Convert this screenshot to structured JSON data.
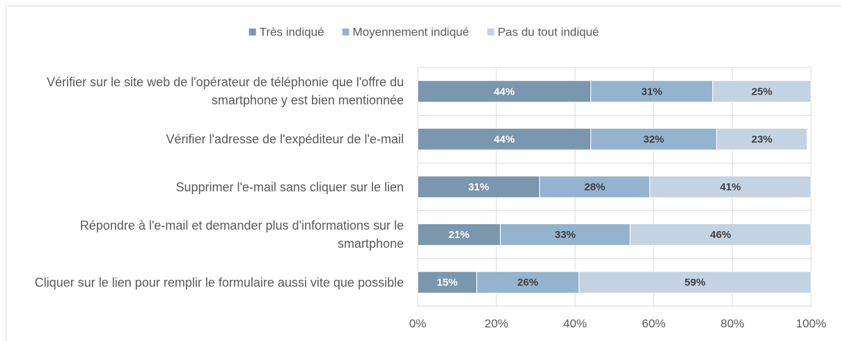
{
  "chart_data": {
    "type": "stacked_bar_horizontal",
    "categories": [
      "Vérifier sur le site web de l'opérateur de téléphonie que l'offre du smartphone y est bien mentionnée",
      "Vérifier l'adresse de l'expéditeur de l'e-mail",
      "Supprimer l'e-mail sans cliquer sur le lien",
      "Répondre à l'e-mail et demander plus d'informations sur le smartphone",
      "Cliquer sur le lien pour remplir le formulaire aussi vite que possible"
    ],
    "series": [
      {
        "name": "Très indiqué",
        "color": "#7a97ae",
        "values": [
          44,
          44,
          31,
          21,
          15
        ],
        "value_labels": [
          "44%",
          "44%",
          "31%",
          "21%",
          "15%"
        ]
      },
      {
        "name": "Moyennement indiqué",
        "color": "#95b3cf",
        "values": [
          31,
          32,
          28,
          33,
          26
        ],
        "value_labels": [
          "31%",
          "32%",
          "28%",
          "33%",
          "26%"
        ]
      },
      {
        "name": "Pas du tout indiqué",
        "color": "#c3d3e2",
        "values": [
          25,
          23,
          41,
          46,
          59
        ],
        "value_labels": [
          "25%",
          "23%",
          "41%",
          "46%",
          "59%"
        ]
      }
    ],
    "xlim": [
      0,
      100
    ],
    "xticks": [
      {
        "value": 0,
        "label": "0%"
      },
      {
        "value": 20,
        "label": "20%"
      },
      {
        "value": 40,
        "label": "40%"
      },
      {
        "value": 60,
        "label": "60%"
      },
      {
        "value": 80,
        "label": "80%"
      },
      {
        "value": 100,
        "label": "100%"
      }
    ],
    "grid": true,
    "legend": "top"
  }
}
